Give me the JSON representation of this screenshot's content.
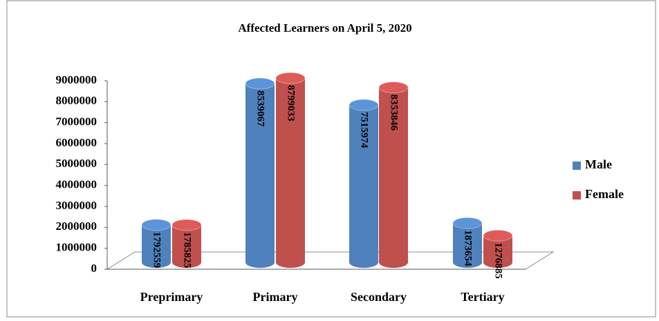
{
  "chart_data": {
    "type": "bar3d",
    "title": "Affected Learners on April 5, 2020",
    "categories": [
      "Preprimary",
      "Primary",
      "Secondary",
      "Tertiary"
    ],
    "series": [
      {
        "name": "Male",
        "color": "#4f81bd",
        "values": [
          1792559,
          8539067,
          7515974,
          1873654
        ]
      },
      {
        "name": "Female",
        "color": "#c0504d",
        "values": [
          1785825,
          8799033,
          8353846,
          1276885
        ]
      }
    ],
    "ylim": [
      0,
      9000000
    ],
    "yticks": [
      0,
      1000000,
      2000000,
      3000000,
      4000000,
      5000000,
      6000000,
      7000000,
      8000000,
      9000000
    ],
    "legend": "right"
  }
}
